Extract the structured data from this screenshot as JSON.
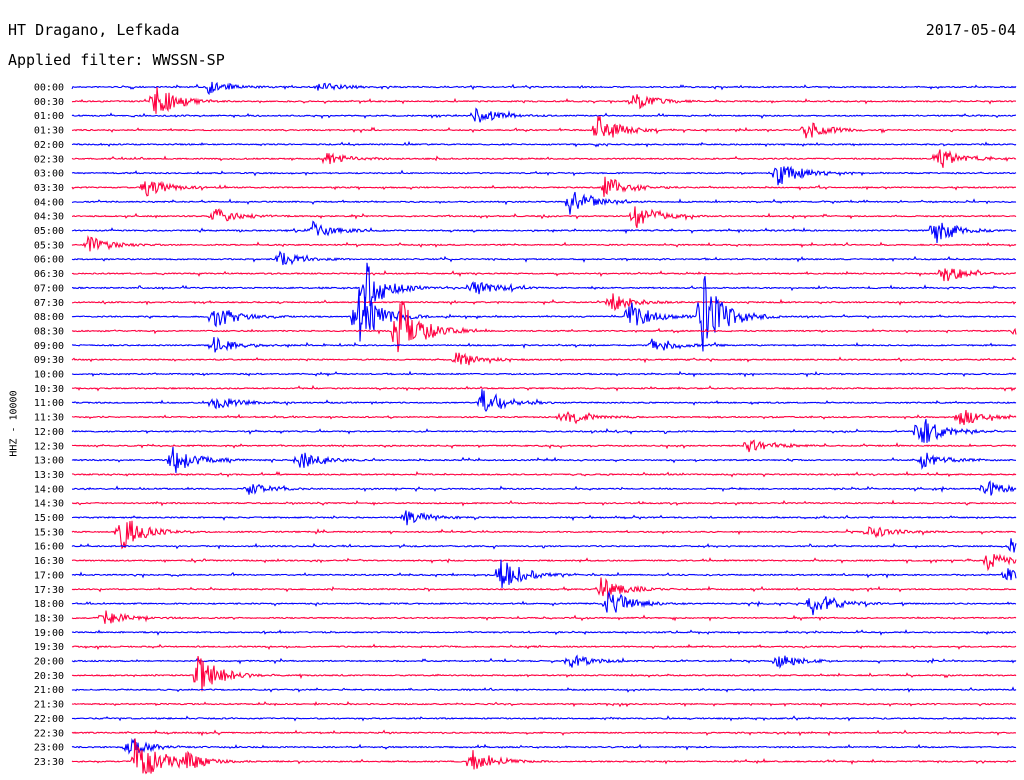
{
  "header": {
    "station": "HT Dragano, Lefkada",
    "date": "2017-05-04",
    "filter_label": "Applied filter: WWSSN-SP"
  },
  "chart_data": {
    "type": "line",
    "title": "HT Dragano, Lefkada",
    "ylabel": "HHZ - 10000",
    "xlabel": "",
    "grid": false,
    "colors": [
      "#0000ff",
      "#ff0040"
    ],
    "trace_labels": [
      "00:00",
      "00:30",
      "01:00",
      "01:30",
      "02:00",
      "02:30",
      "03:00",
      "03:30",
      "04:00",
      "04:30",
      "05:00",
      "05:30",
      "06:00",
      "06:30",
      "07:00",
      "07:30",
      "08:00",
      "08:30",
      "09:00",
      "09:30",
      "10:00",
      "10:30",
      "11:00",
      "11:30",
      "12:00",
      "12:30",
      "13:00",
      "13:30",
      "14:00",
      "14:30",
      "15:00",
      "15:30",
      "16:00",
      "16:30",
      "17:00",
      "17:30",
      "18:00",
      "18:30",
      "19:00",
      "19:30",
      "20:00",
      "20:30",
      "21:00",
      "21:30",
      "22:00",
      "22:30",
      "23:00",
      "23:30"
    ],
    "events": [
      {
        "trace": "00:30",
        "minute": 2.6,
        "amplitude": 1.0
      },
      {
        "trace": "00:00",
        "minute": 4.3,
        "amplitude": 0.35
      },
      {
        "trace": "00:00",
        "minute": 7.8,
        "amplitude": 0.3
      },
      {
        "trace": "00:30",
        "minute": 17.8,
        "amplitude": 0.5
      },
      {
        "trace": "01:00",
        "minute": 12.8,
        "amplitude": 0.45
      },
      {
        "trace": "01:30",
        "minute": 16.7,
        "amplitude": 0.8
      },
      {
        "trace": "01:30",
        "minute": 23.3,
        "amplitude": 0.5
      },
      {
        "trace": "02:30",
        "minute": 8.1,
        "amplitude": 0.3
      },
      {
        "trace": "02:30",
        "minute": 27.5,
        "amplitude": 0.6
      },
      {
        "trace": "03:00",
        "minute": 22.4,
        "amplitude": 0.8
      },
      {
        "trace": "03:30",
        "minute": 2.3,
        "amplitude": 0.5
      },
      {
        "trace": "03:30",
        "minute": 16.9,
        "amplitude": 0.65
      },
      {
        "trace": "04:00",
        "minute": 15.8,
        "amplitude": 0.7
      },
      {
        "trace": "04:30",
        "minute": 4.5,
        "amplitude": 0.45
      },
      {
        "trace": "04:30",
        "minute": 17.8,
        "amplitude": 0.8
      },
      {
        "trace": "05:00",
        "minute": 7.6,
        "amplitude": 0.5
      },
      {
        "trace": "05:00",
        "minute": 27.4,
        "amplitude": 0.7
      },
      {
        "trace": "05:30",
        "minute": 0.5,
        "amplitude": 0.5
      },
      {
        "trace": "06:00",
        "minute": 6.6,
        "amplitude": 0.4
      },
      {
        "trace": "06:30",
        "minute": 27.7,
        "amplitude": 0.45
      },
      {
        "trace": "07:00",
        "minute": 12.7,
        "amplitude": 0.45
      },
      {
        "trace": "07:00",
        "minute": 9.3,
        "amplitude": 1.4
      },
      {
        "trace": "07:30",
        "minute": 17.1,
        "amplitude": 0.5
      },
      {
        "trace": "08:00",
        "minute": 4.5,
        "amplitude": 0.7
      },
      {
        "trace": "08:00",
        "minute": 9.0,
        "amplitude": 1.8
      },
      {
        "trace": "08:00",
        "minute": 17.7,
        "amplitude": 0.8
      },
      {
        "trace": "08:00",
        "minute": 20.0,
        "amplitude": 2.5
      },
      {
        "trace": "08:30",
        "minute": 10.3,
        "amplitude": 2.2
      },
      {
        "trace": "08:30",
        "minute": 30.0,
        "amplitude": 0.4
      },
      {
        "trace": "09:00",
        "minute": 4.5,
        "amplitude": 0.4
      },
      {
        "trace": "09:00",
        "minute": 18.4,
        "amplitude": 0.6
      },
      {
        "trace": "09:30",
        "minute": 12.2,
        "amplitude": 0.4
      },
      {
        "trace": "11:00",
        "minute": 4.5,
        "amplitude": 0.45
      },
      {
        "trace": "11:00",
        "minute": 13.0,
        "amplitude": 0.8
      },
      {
        "trace": "11:30",
        "minute": 15.5,
        "amplitude": 0.45
      },
      {
        "trace": "11:30",
        "minute": 28.2,
        "amplitude": 0.5
      },
      {
        "trace": "12:00",
        "minute": 26.9,
        "amplitude": 0.9
      },
      {
        "trace": "12:30",
        "minute": 21.5,
        "amplitude": 0.5
      },
      {
        "trace": "13:00",
        "minute": 3.2,
        "amplitude": 0.75
      },
      {
        "trace": "13:00",
        "minute": 7.2,
        "amplitude": 0.5
      },
      {
        "trace": "13:00",
        "minute": 27.0,
        "amplitude": 0.5
      },
      {
        "trace": "14:00",
        "minute": 5.6,
        "amplitude": 0.35
      },
      {
        "trace": "14:00",
        "minute": 29.0,
        "amplitude": 0.45
      },
      {
        "trace": "15:30",
        "minute": 1.5,
        "amplitude": 1.1
      },
      {
        "trace": "15:00",
        "minute": 10.6,
        "amplitude": 0.45
      },
      {
        "trace": "15:30",
        "minute": 25.3,
        "amplitude": 0.4
      },
      {
        "trace": "16:00",
        "minute": 29.8,
        "amplitude": 0.4
      },
      {
        "trace": "16:30",
        "minute": 29.1,
        "amplitude": 0.45
      },
      {
        "trace": "17:00",
        "minute": 13.6,
        "amplitude": 1.0
      },
      {
        "trace": "17:00",
        "minute": 29.7,
        "amplitude": 0.4
      },
      {
        "trace": "17:30",
        "minute": 16.8,
        "amplitude": 0.7
      },
      {
        "trace": "18:00",
        "minute": 17.0,
        "amplitude": 0.8
      },
      {
        "trace": "18:00",
        "minute": 23.5,
        "amplitude": 0.8
      },
      {
        "trace": "18:30",
        "minute": 1.0,
        "amplitude": 0.4
      },
      {
        "trace": "20:00",
        "minute": 15.8,
        "amplitude": 0.35
      },
      {
        "trace": "20:00",
        "minute": 22.4,
        "amplitude": 0.4
      },
      {
        "trace": "20:30",
        "minute": 4.0,
        "amplitude": 1.2
      },
      {
        "trace": "23:00",
        "minute": 1.8,
        "amplitude": 0.5
      },
      {
        "trace": "23:30",
        "minute": 2.0,
        "amplitude": 1.4
      },
      {
        "trace": "23:30",
        "minute": 3.5,
        "amplitude": 0.5
      },
      {
        "trace": "23:30",
        "minute": 12.7,
        "amplitude": 0.7
      }
    ]
  }
}
